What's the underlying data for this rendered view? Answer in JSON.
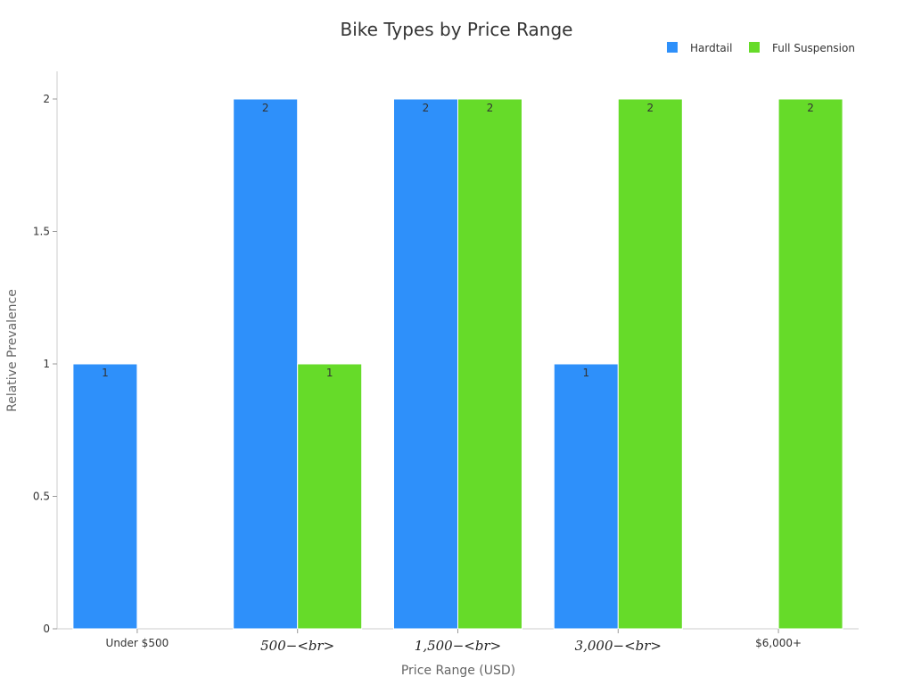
{
  "chart_data": {
    "type": "bar",
    "title": "Bike Types by Price Range",
    "xlabel": "Price Range (USD)",
    "ylabel": "Relative Prevalence",
    "categories": [
      "Under $500",
      "500−<br>",
      "1,500−<br>",
      "3,000−<br>",
      "$6,000+"
    ],
    "series": [
      {
        "name": "Hardtail",
        "color": "#2e90fa",
        "values": [
          1,
          2,
          2,
          1,
          0
        ]
      },
      {
        "name": "Full Suspension",
        "color": "#66db29",
        "values": [
          0,
          1,
          2,
          2,
          2
        ]
      }
    ],
    "ylim": [
      0,
      2
    ],
    "yticks": [
      "0",
      "0.5",
      "1",
      "1.5",
      "2"
    ],
    "grid": false,
    "legend_position": "top-right"
  }
}
